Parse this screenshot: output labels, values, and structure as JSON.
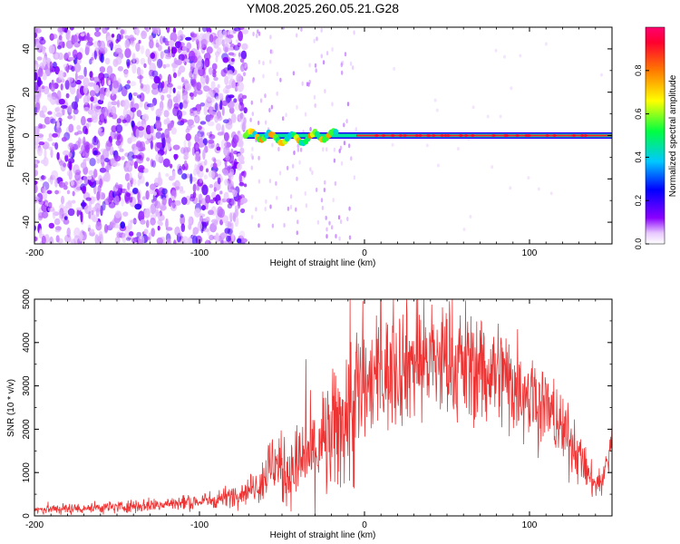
{
  "chart_data": [
    {
      "type": "heatmap",
      "title": "YM08.2025.260.05.21.G28",
      "xlabel": "Height of straight line (km)",
      "ylabel": "Frequency (Hz)",
      "xlim": [
        -200,
        150
      ],
      "ylim": [
        -50,
        50
      ],
      "xticks": [
        "-200",
        "-100",
        "0",
        "100"
      ],
      "yticks": [
        "-40",
        "-20",
        "0",
        "20",
        "40"
      ],
      "colorbar": {
        "label": "Normalized spectral amplitude",
        "range": [
          0,
          1
        ],
        "ticks": [
          "0.0",
          "0.2",
          "0.4",
          "0.6",
          "0.8"
        ],
        "colors": [
          "#ffffff",
          "#8a00ff",
          "#0000ff",
          "#00d8ff",
          "#00ff40",
          "#ffff00",
          "#ff8000",
          "#ff0050"
        ]
      },
      "features": [
        {
          "name": "broadband noise",
          "x_range": [
            -200,
            -72
          ],
          "y_range": [
            -50,
            50
          ],
          "amplitude": 0.15
        },
        {
          "name": "carrier line",
          "x_range": [
            -72,
            150
          ],
          "frequency_hz": 0,
          "amplitude": 0.9
        }
      ]
    },
    {
      "type": "line",
      "xlabel": "Height of straight line (km)",
      "ylabel": "SNR (10 * v/v)",
      "xlim": [
        -200,
        150
      ],
      "ylim": [
        0,
        5000
      ],
      "xticks": [
        "-200",
        "-100",
        "0",
        "100"
      ],
      "yticks": [
        "0",
        "1000",
        "2000",
        "3000",
        "4000",
        "5000"
      ],
      "color": "#ee3333",
      "series": [
        {
          "name": "SNR",
          "x": [
            -200,
            -175,
            -150,
            -125,
            -100,
            -90,
            -80,
            -70,
            -60,
            -55,
            -50,
            -40,
            -30,
            -20,
            -10,
            0,
            10,
            20,
            30,
            40,
            50,
            60,
            70,
            80,
            90,
            100,
            110,
            120,
            130,
            135,
            140,
            145,
            150
          ],
          "y": [
            150,
            170,
            210,
            260,
            330,
            380,
            480,
            600,
            900,
            1300,
            1000,
            1200,
            1500,
            1800,
            2400,
            3000,
            3200,
            3500,
            3600,
            3600,
            3550,
            3500,
            3400,
            3300,
            3100,
            2900,
            2500,
            2000,
            1400,
            1000,
            700,
            900,
            1800
          ]
        }
      ]
    }
  ]
}
